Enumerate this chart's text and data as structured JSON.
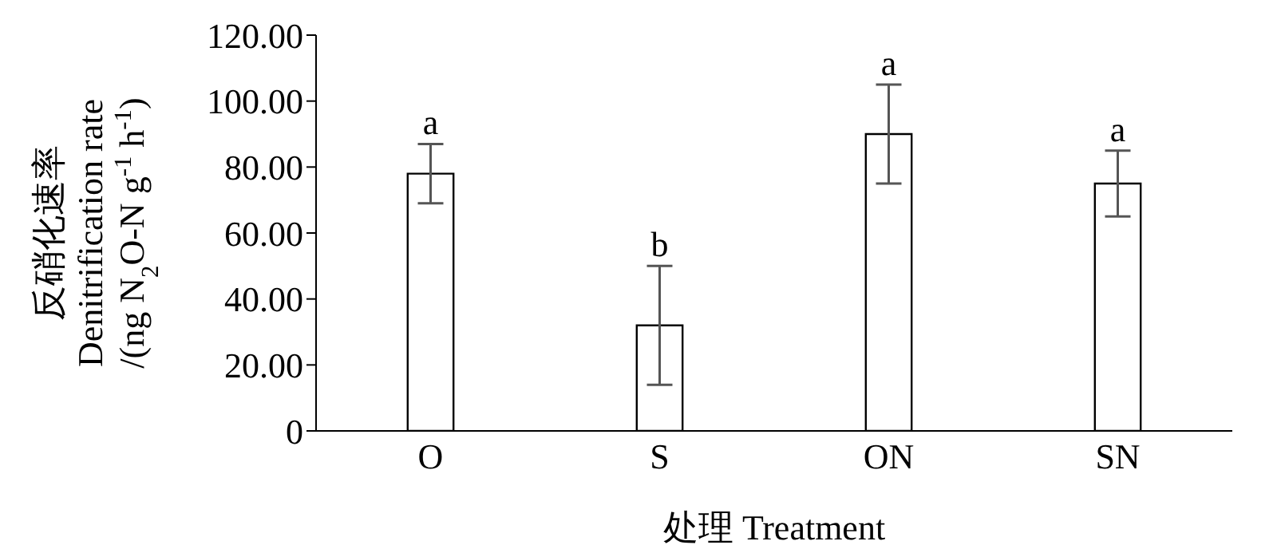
{
  "chart_data": {
    "type": "bar",
    "xlabel": "处理  Treatment",
    "ylabel": "反硝化速率\nDenitrification rate\n/(ng N$_{2}$O-N g$^{-1}$ h$^{-1}$)",
    "categories": [
      "O",
      "S",
      "ON",
      "SN"
    ],
    "values": [
      78,
      32,
      90,
      75
    ],
    "errors": [
      [
        69,
        87
      ],
      [
        14,
        50
      ],
      [
        75,
        105
      ],
      [
        65,
        85
      ]
    ],
    "color": "#ffffff",
    "ylim": [
      0,
      120
    ],
    "yticks": [
      {
        "value": 0,
        "label": "0"
      },
      {
        "value": 20,
        "label": "20.00"
      },
      {
        "value": 40,
        "label": "40.00"
      },
      {
        "value": 60,
        "label": "60.00"
      },
      {
        "value": 80,
        "label": "80.00"
      },
      {
        "value": 100,
        "label": "100.00"
      },
      {
        "value": 120,
        "label": "120.00"
      }
    ],
    "annotations": [
      {
        "text": "a",
        "x": "O",
        "y": 87
      },
      {
        "text": "b",
        "x": "S",
        "y": 50
      },
      {
        "text": "a",
        "x": "ON",
        "y": 105
      },
      {
        "text": "a",
        "x": "SN",
        "y": 85
      }
    ],
    "grid": false,
    "legend": false
  }
}
